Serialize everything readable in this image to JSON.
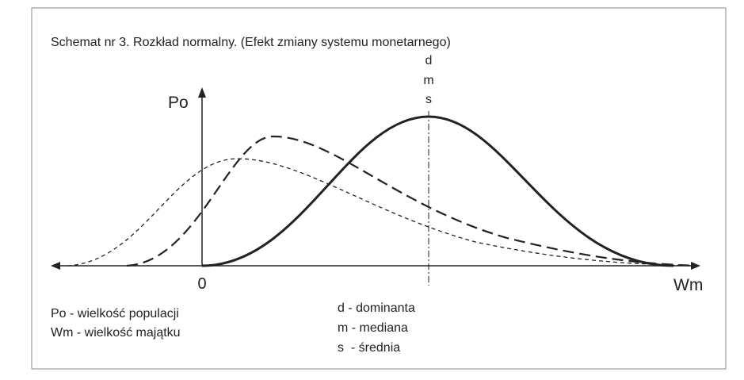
{
  "title": "Schemat nr 3. Rozkład normalny. (Efekt zmiany systemu monetarnego)",
  "axes": {
    "y_label": "Po",
    "x_label": "Wm",
    "origin": "0"
  },
  "marker_labels": [
    "d",
    "m",
    "s"
  ],
  "legend": [
    "Po - wielkość populacji",
    "Wm - wielkość majątku"
  ],
  "measures": [
    "d - dominanta",
    "m - mediana",
    "s  - średnia"
  ]
}
